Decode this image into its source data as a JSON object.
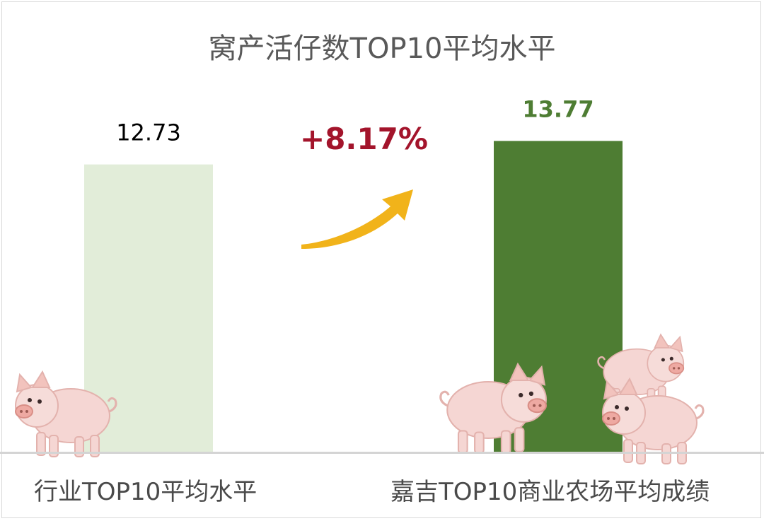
{
  "chart_data": {
    "type": "bar",
    "title": "窝产活仔数TOP10平均水平",
    "categories": [
      "行业TOP10平均水平",
      "嘉吉TOP10商业农场平均成绩"
    ],
    "values": [
      12.73,
      13.77
    ],
    "value_labels": [
      "12.73",
      "13.77"
    ],
    "ylim": [
      0,
      20
    ],
    "bar_colors": [
      "#e2edd9",
      "#4e7d33"
    ],
    "value_label_colors": [
      "#000000",
      "#4e7d33"
    ],
    "change_label": "+8.17%",
    "change_color": "#a3142b",
    "arrow_color": "#f1b31a",
    "grid": false,
    "xlabel": "",
    "ylabel": ""
  },
  "decorations": [
    "pig-illustration",
    "pig-illustration",
    "pig-illustration",
    "pig-illustration"
  ]
}
